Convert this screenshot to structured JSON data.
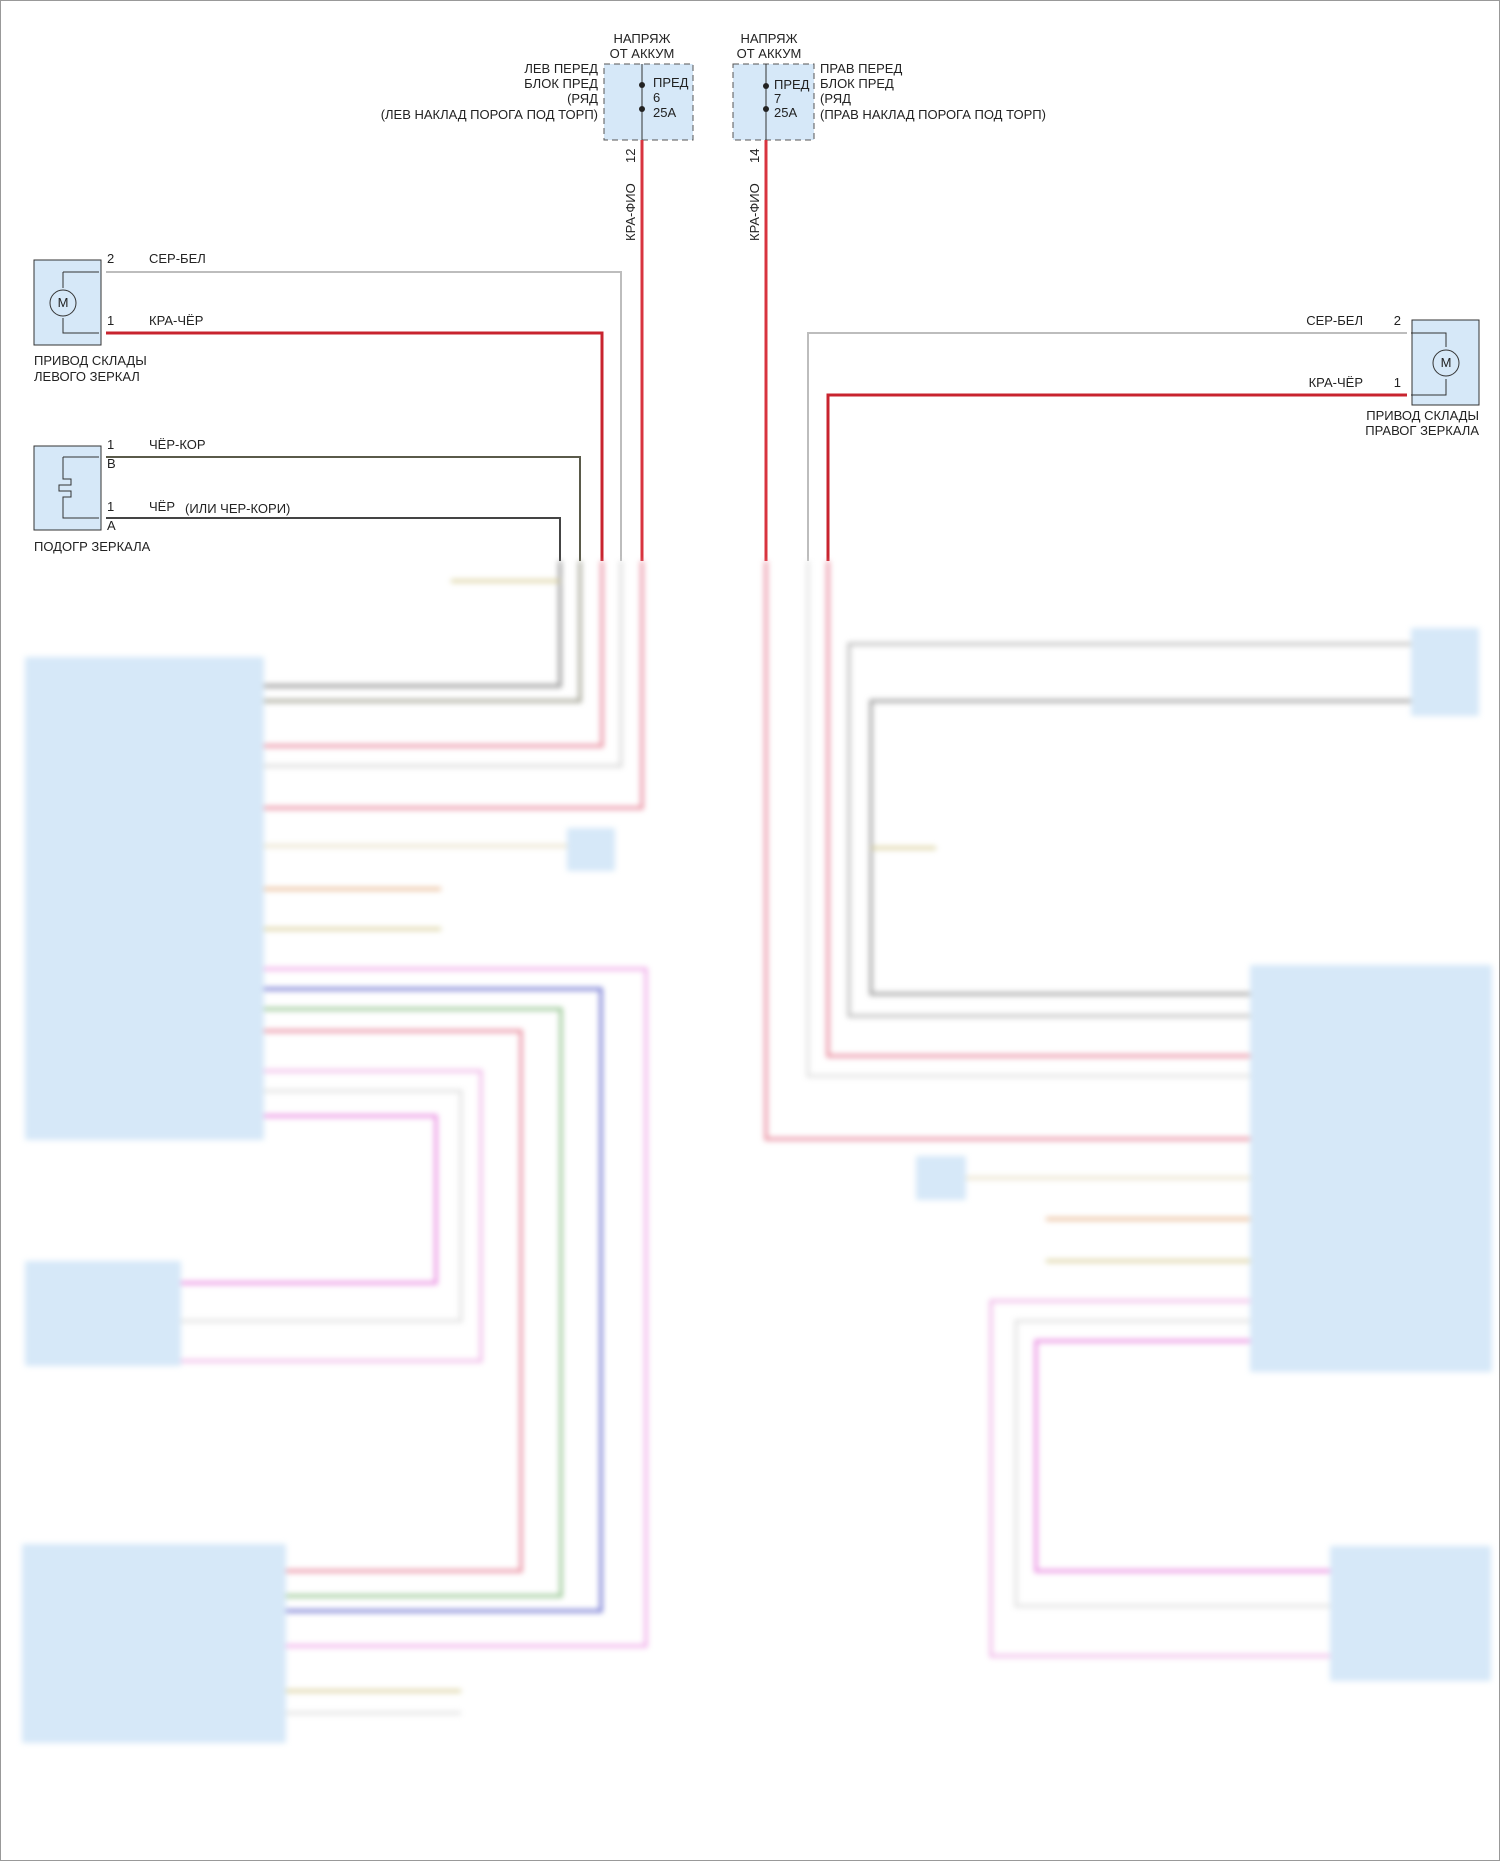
{
  "colors": {
    "component_fill": "#d6e8f8",
    "wire_red": "#d8343f",
    "wire_gray": "#bdbdbd",
    "wire_dark": "#5a5a4a",
    "wire_black": "#444444",
    "wire_pink": "#e88ad8",
    "wire_blue": "#6a6fd0",
    "wire_green": "#8fc28a",
    "wire_yellow": "#d8cf9a"
  },
  "fuse_left": {
    "supply": [
      "НАПРЯЖ",
      "ОТ АККУМ"
    ],
    "label": [
      "ЛЕВ ПЕРЕД",
      "БЛОК ПРЕД",
      "(РЯД",
      "(ЛЕВ НАКЛАД ПОРОГА ПОД ТОРП)"
    ],
    "fuse": [
      "ПРЕД",
      "6",
      "25A"
    ],
    "pin": "12",
    "wire": "КРА-ФИО"
  },
  "fuse_right": {
    "supply": [
      "НАПРЯЖ",
      "ОТ АККУМ"
    ],
    "label": [
      "ПРАВ ПЕРЕД",
      "БЛОК ПРЕД",
      "(РЯД",
      "(ПРАВ НАКЛАД ПОРОГА ПОД ТОРП)"
    ],
    "fuse": [
      "ПРЕД",
      "7",
      "25A"
    ],
    "pin": "14",
    "wire": "КРА-ФИО"
  },
  "left_fold_motor": {
    "symbol": "M",
    "label": [
      "ПРИВОД СКЛАДЫ",
      "ЛЕВОГО ЗЕРКАЛ"
    ],
    "pins": [
      {
        "num": "2",
        "wire": "СЕР-БЕЛ"
      },
      {
        "num": "1",
        "wire": "КРА-ЧЁР"
      }
    ]
  },
  "left_heater": {
    "label": [
      "ПОДОГР ЗЕРКАЛА"
    ],
    "pins": [
      {
        "num": "1",
        "sub": "B",
        "wire": "ЧЁР-КОР"
      },
      {
        "num": "1",
        "sub": "A",
        "wire": "ЧЁР",
        "note": "(ИЛИ ЧЕР-КОРИ)"
      }
    ]
  },
  "right_fold_motor": {
    "symbol": "M",
    "label": [
      "ПРИВОД СКЛАДЫ",
      "ПРАВОГ ЗЕРКАЛА"
    ],
    "pins": [
      {
        "num": "2",
        "wire": "СЕР-БЕЛ"
      },
      {
        "num": "1",
        "wire": "КРА-ЧЁР"
      }
    ]
  }
}
